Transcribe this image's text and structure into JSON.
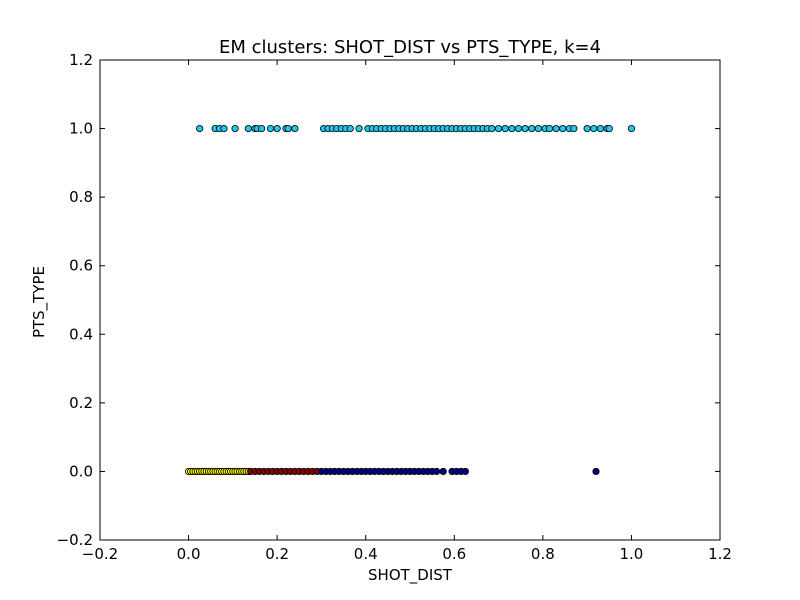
{
  "chart_data": {
    "type": "scatter",
    "title": "EM clusters: SHOT_DIST vs PTS_TYPE, k=4",
    "xlabel": "SHOT_DIST",
    "ylabel": "PTS_TYPE",
    "xlim": [
      -0.2,
      1.2
    ],
    "ylim": [
      -0.2,
      1.2
    ],
    "xticks": [
      -0.2,
      0.0,
      0.2,
      0.4,
      0.6,
      0.8,
      1.0,
      1.2
    ],
    "yticks": [
      -0.2,
      0.0,
      0.2,
      0.4,
      0.6,
      0.8,
      1.0,
      1.2
    ],
    "xtick_labels": [
      "−0.2",
      "0.0",
      "0.2",
      "0.4",
      "0.6",
      "0.8",
      "1.0",
      "1.2"
    ],
    "ytick_labels": [
      "−0.2",
      "0.0",
      "0.2",
      "0.4",
      "0.6",
      "0.8",
      "1.0",
      "1.2"
    ],
    "grid": false,
    "series": [
      {
        "color": "#ffff00",
        "points": [
          [
            0.0,
            0
          ],
          [
            0.005,
            0
          ],
          [
            0.01,
            0
          ],
          [
            0.015,
            0
          ],
          [
            0.02,
            0
          ],
          [
            0.025,
            0
          ],
          [
            0.03,
            0
          ],
          [
            0.035,
            0
          ],
          [
            0.04,
            0
          ],
          [
            0.045,
            0
          ],
          [
            0.05,
            0
          ],
          [
            0.055,
            0
          ],
          [
            0.06,
            0
          ],
          [
            0.065,
            0
          ],
          [
            0.07,
            0
          ],
          [
            0.075,
            0
          ],
          [
            0.08,
            0
          ],
          [
            0.085,
            0
          ],
          [
            0.09,
            0
          ],
          [
            0.095,
            0
          ],
          [
            0.1,
            0
          ],
          [
            0.105,
            0
          ],
          [
            0.11,
            0
          ],
          [
            0.115,
            0
          ],
          [
            0.12,
            0
          ],
          [
            0.125,
            0
          ],
          [
            0.13,
            0
          ],
          [
            0.135,
            0
          ]
        ]
      },
      {
        "color": "#800000",
        "points": [
          [
            0.14,
            0
          ],
          [
            0.15,
            0
          ],
          [
            0.16,
            0
          ],
          [
            0.17,
            0
          ],
          [
            0.18,
            0
          ],
          [
            0.19,
            0
          ],
          [
            0.2,
            0
          ],
          [
            0.21,
            0
          ],
          [
            0.22,
            0
          ],
          [
            0.23,
            0
          ],
          [
            0.24,
            0
          ],
          [
            0.25,
            0
          ],
          [
            0.26,
            0
          ],
          [
            0.27,
            0
          ],
          [
            0.28,
            0
          ],
          [
            0.29,
            0
          ]
        ]
      },
      {
        "color": "#000080",
        "points": [
          [
            0.3,
            0
          ],
          [
            0.31,
            0
          ],
          [
            0.32,
            0
          ],
          [
            0.33,
            0
          ],
          [
            0.34,
            0
          ],
          [
            0.35,
            0
          ],
          [
            0.36,
            0
          ],
          [
            0.37,
            0
          ],
          [
            0.38,
            0
          ],
          [
            0.39,
            0
          ],
          [
            0.4,
            0
          ],
          [
            0.41,
            0
          ],
          [
            0.42,
            0
          ],
          [
            0.43,
            0
          ],
          [
            0.44,
            0
          ],
          [
            0.45,
            0
          ],
          [
            0.46,
            0
          ],
          [
            0.47,
            0
          ],
          [
            0.48,
            0
          ],
          [
            0.49,
            0
          ],
          [
            0.5,
            0
          ],
          [
            0.51,
            0
          ],
          [
            0.52,
            0
          ],
          [
            0.53,
            0
          ],
          [
            0.54,
            0
          ],
          [
            0.55,
            0
          ],
          [
            0.56,
            0
          ],
          [
            0.575,
            0
          ],
          [
            0.595,
            0
          ],
          [
            0.605,
            0
          ],
          [
            0.615,
            0
          ],
          [
            0.625,
            0
          ],
          [
            0.92,
            0
          ]
        ]
      },
      {
        "color": "#1ec8e8",
        "points": [
          [
            0.025,
            1
          ],
          [
            0.06,
            1
          ],
          [
            0.07,
            1
          ],
          [
            0.08,
            1
          ],
          [
            0.105,
            1
          ],
          [
            0.135,
            1
          ],
          [
            0.15,
            1
          ],
          [
            0.155,
            1
          ],
          [
            0.165,
            1
          ],
          [
            0.185,
            1
          ],
          [
            0.2,
            1
          ],
          [
            0.22,
            1
          ],
          [
            0.225,
            1
          ],
          [
            0.24,
            1
          ],
          [
            0.305,
            1
          ],
          [
            0.315,
            1
          ],
          [
            0.325,
            1
          ],
          [
            0.335,
            1
          ],
          [
            0.345,
            1
          ],
          [
            0.355,
            1
          ],
          [
            0.365,
            1
          ],
          [
            0.385,
            1
          ],
          [
            0.405,
            1
          ],
          [
            0.415,
            1
          ],
          [
            0.425,
            1
          ],
          [
            0.435,
            1
          ],
          [
            0.445,
            1
          ],
          [
            0.455,
            1
          ],
          [
            0.465,
            1
          ],
          [
            0.475,
            1
          ],
          [
            0.485,
            1
          ],
          [
            0.495,
            1
          ],
          [
            0.505,
            1
          ],
          [
            0.515,
            1
          ],
          [
            0.525,
            1
          ],
          [
            0.535,
            1
          ],
          [
            0.545,
            1
          ],
          [
            0.555,
            1
          ],
          [
            0.565,
            1
          ],
          [
            0.575,
            1
          ],
          [
            0.585,
            1
          ],
          [
            0.595,
            1
          ],
          [
            0.605,
            1
          ],
          [
            0.615,
            1
          ],
          [
            0.625,
            1
          ],
          [
            0.635,
            1
          ],
          [
            0.645,
            1
          ],
          [
            0.655,
            1
          ],
          [
            0.665,
            1
          ],
          [
            0.675,
            1
          ],
          [
            0.685,
            1
          ],
          [
            0.7,
            1
          ],
          [
            0.715,
            1
          ],
          [
            0.73,
            1
          ],
          [
            0.745,
            1
          ],
          [
            0.76,
            1
          ],
          [
            0.775,
            1
          ],
          [
            0.79,
            1
          ],
          [
            0.805,
            1
          ],
          [
            0.815,
            1
          ],
          [
            0.83,
            1
          ],
          [
            0.845,
            1
          ],
          [
            0.86,
            1
          ],
          [
            0.87,
            1
          ],
          [
            0.9,
            1
          ],
          [
            0.915,
            1
          ],
          [
            0.93,
            1
          ],
          [
            0.945,
            1
          ],
          [
            0.95,
            1
          ],
          [
            1.0,
            1
          ]
        ]
      }
    ]
  }
}
